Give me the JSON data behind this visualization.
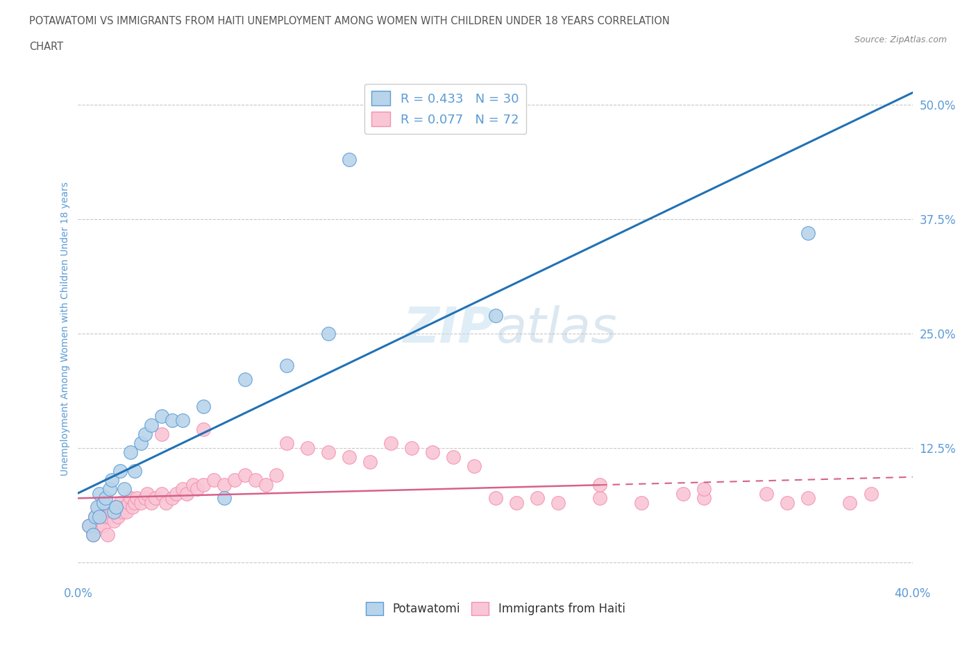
{
  "title_line1": "POTAWATOMI VS IMMIGRANTS FROM HAITI UNEMPLOYMENT AMONG WOMEN WITH CHILDREN UNDER 18 YEARS CORRELATION",
  "title_line2": "CHART",
  "source_text": "Source: ZipAtlas.com",
  "ylabel": "Unemployment Among Women with Children Under 18 years",
  "xlim": [
    0.0,
    0.4
  ],
  "ylim": [
    -0.02,
    0.53
  ],
  "yticks": [
    0.0,
    0.125,
    0.25,
    0.375,
    0.5
  ],
  "ytick_labels": [
    "",
    "12.5%",
    "25.0%",
    "37.5%",
    "50.0%"
  ],
  "xticks": [
    0.0,
    0.1,
    0.2,
    0.3,
    0.4
  ],
  "xtick_labels": [
    "0.0%",
    "",
    "",
    "",
    "40.0%"
  ],
  "legend_r_values": [
    "0.433",
    "0.077"
  ],
  "legend_n_values": [
    "30",
    "72"
  ],
  "potawatomi_x": [
    0.005,
    0.007,
    0.008,
    0.009,
    0.01,
    0.01,
    0.012,
    0.013,
    0.015,
    0.016,
    0.017,
    0.018,
    0.02,
    0.022,
    0.025,
    0.027,
    0.03,
    0.032,
    0.035,
    0.04,
    0.045,
    0.05,
    0.06,
    0.07,
    0.08,
    0.1,
    0.12,
    0.13,
    0.2,
    0.35
  ],
  "potawatomi_y": [
    0.04,
    0.03,
    0.05,
    0.06,
    0.075,
    0.05,
    0.065,
    0.07,
    0.08,
    0.09,
    0.055,
    0.06,
    0.1,
    0.08,
    0.12,
    0.1,
    0.13,
    0.14,
    0.15,
    0.16,
    0.155,
    0.155,
    0.17,
    0.07,
    0.2,
    0.215,
    0.25,
    0.44,
    0.27,
    0.36
  ],
  "haiti_x": [
    0.005,
    0.007,
    0.008,
    0.009,
    0.01,
    0.01,
    0.011,
    0.012,
    0.013,
    0.014,
    0.015,
    0.016,
    0.017,
    0.018,
    0.019,
    0.02,
    0.021,
    0.022,
    0.023,
    0.024,
    0.025,
    0.026,
    0.027,
    0.028,
    0.03,
    0.032,
    0.033,
    0.035,
    0.037,
    0.04,
    0.042,
    0.045,
    0.047,
    0.05,
    0.052,
    0.055,
    0.057,
    0.06,
    0.065,
    0.07,
    0.075,
    0.08,
    0.085,
    0.09,
    0.095,
    0.1,
    0.11,
    0.12,
    0.13,
    0.14,
    0.15,
    0.16,
    0.17,
    0.18,
    0.19,
    0.2,
    0.21,
    0.22,
    0.23,
    0.25,
    0.27,
    0.29,
    0.3,
    0.33,
    0.34,
    0.35,
    0.37,
    0.38,
    0.04,
    0.06,
    0.25,
    0.3
  ],
  "haiti_y": [
    0.04,
    0.03,
    0.05,
    0.04,
    0.06,
    0.04,
    0.05,
    0.04,
    0.05,
    0.03,
    0.05,
    0.055,
    0.045,
    0.06,
    0.05,
    0.065,
    0.055,
    0.06,
    0.055,
    0.065,
    0.07,
    0.06,
    0.065,
    0.07,
    0.065,
    0.07,
    0.075,
    0.065,
    0.07,
    0.075,
    0.065,
    0.07,
    0.075,
    0.08,
    0.075,
    0.085,
    0.08,
    0.085,
    0.09,
    0.085,
    0.09,
    0.095,
    0.09,
    0.085,
    0.095,
    0.13,
    0.125,
    0.12,
    0.115,
    0.11,
    0.13,
    0.125,
    0.12,
    0.115,
    0.105,
    0.07,
    0.065,
    0.07,
    0.065,
    0.07,
    0.065,
    0.075,
    0.07,
    0.075,
    0.065,
    0.07,
    0.065,
    0.075,
    0.14,
    0.145,
    0.085,
    0.08
  ],
  "blue_line_color": "#2171b5",
  "pink_line_color": "#d6618a",
  "blue_dot_color": "#b8d4ea",
  "pink_dot_color": "#f9c6d5",
  "blue_edge_color": "#5b9bd5",
  "pink_edge_color": "#f48fb1",
  "background_color": "#ffffff",
  "grid_color": "#c8c8c8",
  "title_color": "#555555",
  "tick_color": "#5b9bd5",
  "watermark_color": "#cce5f0"
}
